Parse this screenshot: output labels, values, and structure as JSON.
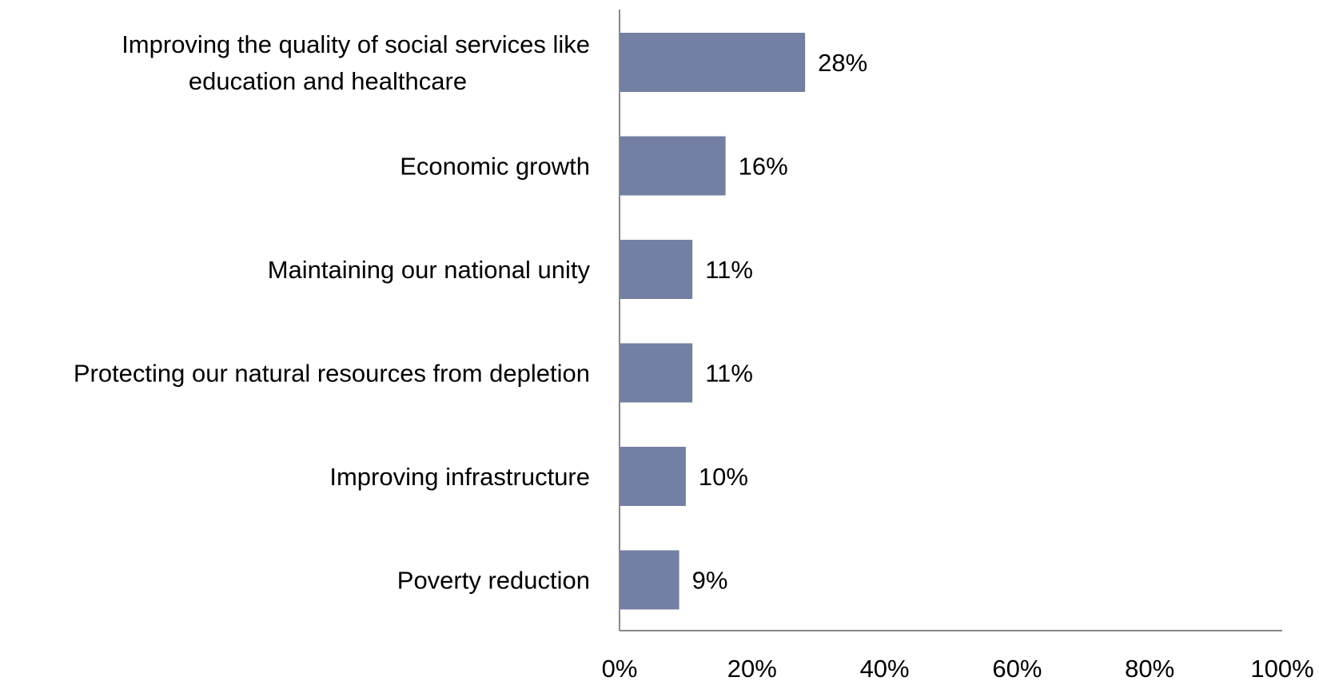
{
  "chart_data": {
    "type": "bar",
    "orientation": "horizontal",
    "categories": [
      [
        "Improving the quality of social services like",
        "education and healthcare"
      ],
      [
        "Economic growth"
      ],
      [
        "Maintaining our national unity"
      ],
      [
        "Protecting our natural resources from depletion"
      ],
      [
        "Improving infrastructure"
      ],
      [
        "Poverty reduction"
      ]
    ],
    "values": [
      28,
      16,
      11,
      11,
      10,
      9
    ],
    "data_labels": [
      "28%",
      "16%",
      "11%",
      "11%",
      "10%",
      "9%"
    ],
    "xlim": [
      0,
      100
    ],
    "x_ticks": [
      0,
      20,
      40,
      60,
      80,
      100
    ],
    "x_tick_labels": [
      "0%",
      "20%",
      "40%",
      "60%",
      "80%",
      "100%"
    ],
    "grid": false,
    "legend": "none",
    "colors": {
      "bar": "#737fa3",
      "axis": "#888888"
    }
  }
}
